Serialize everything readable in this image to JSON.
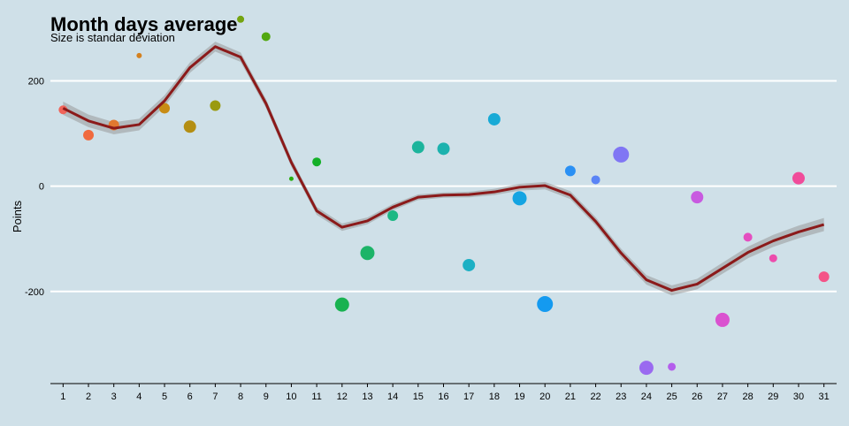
{
  "chart_data": {
    "type": "scatter",
    "title": "Month days average",
    "subtitle": "Size is standar deviation",
    "xlabel": "",
    "ylabel": "Points",
    "x": [
      1,
      2,
      3,
      4,
      5,
      6,
      7,
      8,
      9,
      10,
      11,
      12,
      13,
      14,
      15,
      16,
      17,
      18,
      19,
      20,
      21,
      22,
      23,
      24,
      25,
      26,
      27,
      28,
      29,
      30,
      31
    ],
    "xlim": [
      0.5,
      31.5
    ],
    "ylim": [
      -375,
      320
    ],
    "yticks": [
      -200,
      0,
      200
    ],
    "grid": "horizontal",
    "legend": "none",
    "series": [
      {
        "kind": "points",
        "values": [
          145,
          97,
          116,
          248,
          148,
          113,
          153,
          317,
          284,
          14,
          46,
          -225,
          -127,
          -56,
          74,
          71,
          -150,
          127,
          -23,
          -224,
          29,
          12,
          60,
          -345,
          -343,
          -21,
          -254,
          -97,
          -137,
          15,
          -172
        ],
        "sizes": [
          5,
          6,
          6,
          3,
          6,
          7,
          6,
          4,
          5,
          2.5,
          5,
          8,
          8,
          6,
          7,
          7,
          7,
          7,
          8,
          9,
          6,
          5,
          9,
          8,
          4.5,
          7,
          8,
          5,
          4.5,
          7,
          6
        ],
        "colors": [
          "#f0645a",
          "#f06a3e",
          "#e07830",
          "#d4801e",
          "#c88c14",
          "#b48e12",
          "#9a9a10",
          "#74a410",
          "#52a810",
          "#2aae10",
          "#14b028",
          "#18b250",
          "#1cb468",
          "#1cb884",
          "#1cb49c",
          "#1cb2ae",
          "#1cb0c4",
          "#18aad6",
          "#14a4e2",
          "#149af0",
          "#2a90f4",
          "#5a84f6",
          "#8076f4",
          "#9a6af0",
          "#b45eec",
          "#c85ae0",
          "#da52d0",
          "#e44ec0",
          "#ec4cac",
          "#f04c9a",
          "#f45488"
        ]
      },
      {
        "kind": "smooth",
        "color": "#8b1a1a",
        "values": [
          148,
          124,
          110,
          117,
          162,
          225,
          265,
          245,
          157,
          45,
          -47,
          -78,
          -66,
          -40,
          -21,
          -17,
          -16,
          -11,
          -2,
          1,
          -17,
          -67,
          -127,
          -178,
          -198,
          -186,
          -156,
          -126,
          -104,
          -87,
          -73
        ]
      }
    ]
  }
}
